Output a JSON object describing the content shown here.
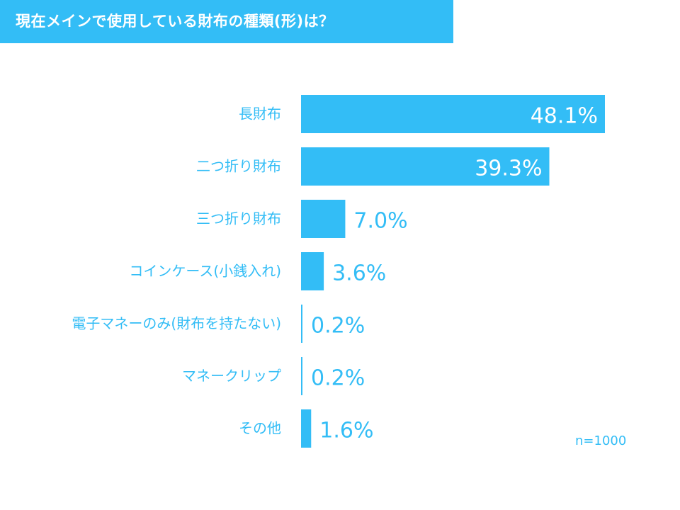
{
  "chart_data": {
    "type": "bar",
    "orientation": "horizontal",
    "title": "現在メインで使用している財布の種類(形)は？",
    "categories": [
      "長財布",
      "二つ折り財布",
      "三つ折り財布",
      "コインケース(小銭入れ)",
      "電子マネーのみ(財布を持たない)",
      "マネークリップ",
      "その他"
    ],
    "values": [
      48.1,
      39.3,
      7.0,
      3.6,
      0.2,
      0.2,
      1.6
    ],
    "value_labels": [
      "48.1%",
      "39.3%",
      "7.0%",
      "3.6%",
      "0.2%",
      "0.2%",
      "1.6%"
    ],
    "xlim": [
      0,
      50
    ],
    "note": "n=1000",
    "grid": false,
    "legend": "none",
    "colors": {
      "bar": "#33bdf6",
      "label": "#33bdf6",
      "title_bg": "#33bdf6",
      "title_text": "#ffffff",
      "inside_value_text": "#ffffff"
    }
  }
}
